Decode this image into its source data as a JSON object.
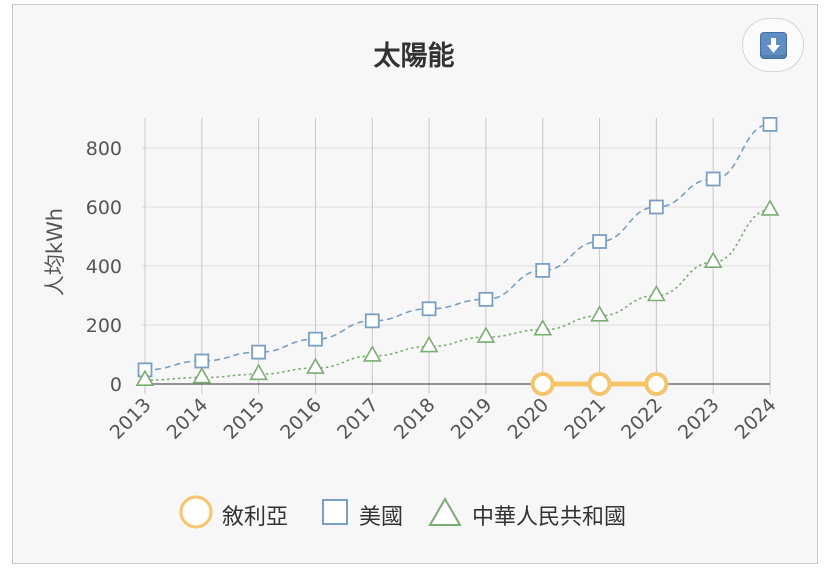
{
  "chart_data": {
    "type": "line",
    "title": "太陽能",
    "ylabel": "人均kWh",
    "xlabel": "",
    "categories": [
      "2013",
      "2014",
      "2015",
      "2016",
      "2017",
      "2018",
      "2019",
      "2020",
      "2021",
      "2022",
      "2023",
      "2024"
    ],
    "ylim": [
      0,
      900
    ],
    "yticks": [
      0,
      200,
      400,
      600,
      800
    ],
    "grid": true,
    "legend_position": "bottom",
    "series": [
      {
        "name": "敘利亞",
        "marker": "circle",
        "color": "#f5c46b",
        "line_style": "solid",
        "values": [
          null,
          null,
          null,
          null,
          null,
          null,
          null,
          0,
          0,
          0,
          null,
          null
        ]
      },
      {
        "name": "美國",
        "marker": "square",
        "color": "#7a9fc2",
        "line_style": "dashed",
        "values": [
          48,
          78,
          108,
          152,
          214,
          255,
          287,
          385,
          483,
          600,
          695,
          880
        ]
      },
      {
        "name": "中華人民共和國",
        "marker": "triangle",
        "color": "#7aad72",
        "line_style": "dotted",
        "values": [
          13,
          22,
          33,
          54,
          95,
          127,
          159,
          184,
          231,
          300,
          413,
          590
        ]
      }
    ]
  },
  "ui": {
    "download_icon": "download-arrow-icon"
  }
}
